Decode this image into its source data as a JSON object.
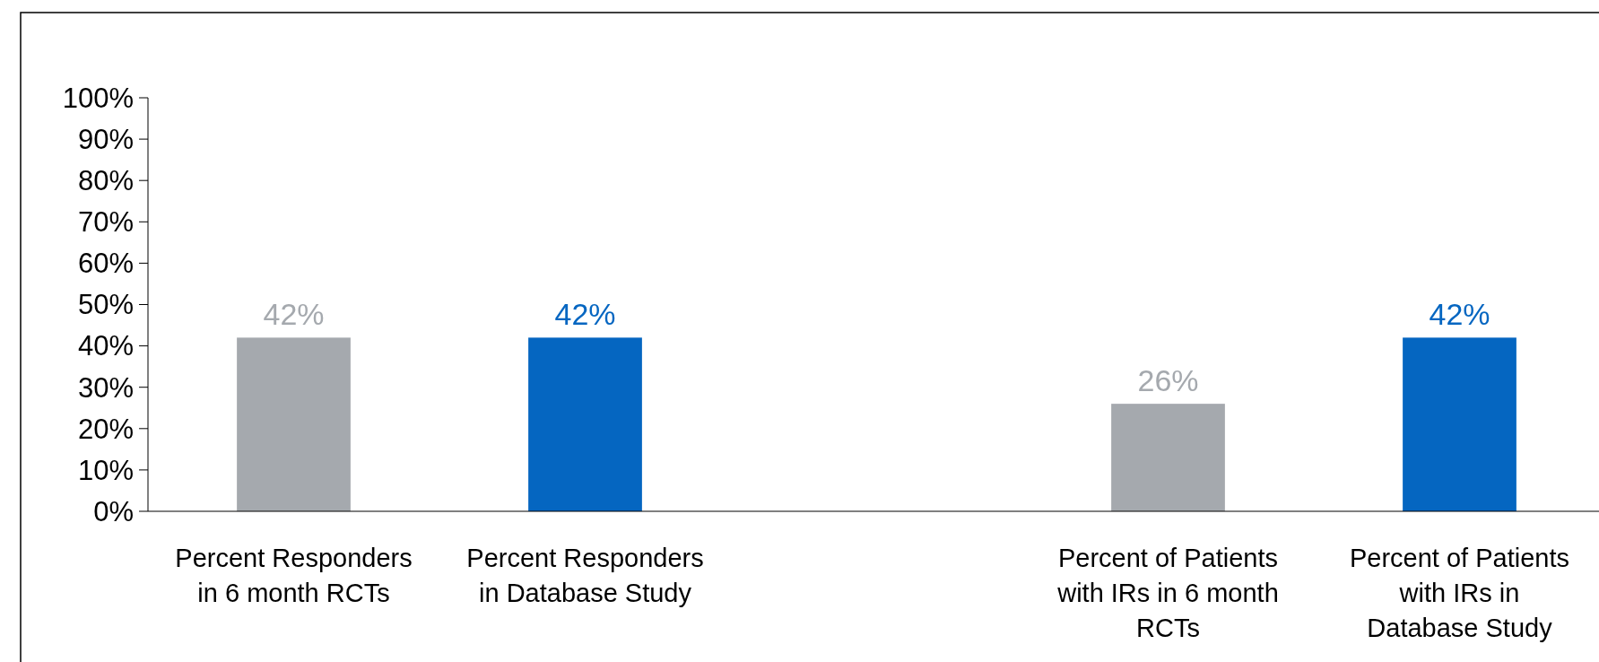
{
  "chart_data": {
    "type": "bar",
    "categories": [
      "Percent Responders in 6 month RCTs",
      "Percent Responders in Database Study",
      null,
      "Percent of Patients with IRs in 6 month RCTs",
      "Percent of Patients with IRs in Database Study"
    ],
    "values": [
      42,
      42,
      null,
      26,
      42
    ],
    "value_labels": [
      "42%",
      "42%",
      null,
      "26%",
      "42%"
    ],
    "colors": [
      "#a5a9ae",
      "#0566c1",
      null,
      "#a5a9ae",
      "#0566c1"
    ],
    "ylim": [
      0,
      100
    ],
    "yticks": [
      {
        "value": 0,
        "label": "0%"
      },
      {
        "value": 10,
        "label": "10%"
      },
      {
        "value": 20,
        "label": "20%"
      },
      {
        "value": 30,
        "label": "30%"
      },
      {
        "value": 40,
        "label": "40%"
      },
      {
        "value": 50,
        "label": "50%"
      },
      {
        "value": 60,
        "label": "60%"
      },
      {
        "value": 70,
        "label": "70%"
      },
      {
        "value": 80,
        "label": "80%"
      },
      {
        "value": 90,
        "label": "90%"
      },
      {
        "value": 100,
        "label": "100%"
      }
    ],
    "grid": false
  }
}
